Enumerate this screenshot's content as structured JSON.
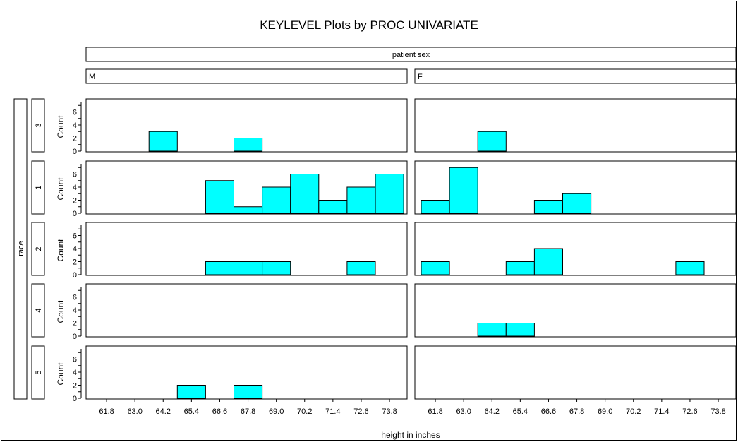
{
  "chart_data": {
    "type": "bar",
    "title": "KEYLEVEL Plots by PROC UNIVARIATE",
    "column_variable": "patient sex",
    "row_variable": "race",
    "columns": [
      "M",
      "F"
    ],
    "rows": [
      "3",
      "1",
      "2",
      "4",
      "5"
    ],
    "xlabel": "height in inches",
    "ylabel": "Count",
    "x_ticks": [
      "61.8",
      "63.0",
      "64.2",
      "65.4",
      "66.6",
      "67.8",
      "69.0",
      "70.2",
      "71.4",
      "72.6",
      "73.8"
    ],
    "y_ticks": [
      "0",
      "2",
      "4",
      "6"
    ],
    "ylim": [
      0,
      8
    ],
    "bin_width": 1.2,
    "bar_color": "#00ffff",
    "panels": [
      {
        "row": "3",
        "col": "M",
        "counts": [
          0,
          0,
          3,
          0,
          0,
          2,
          0,
          0,
          0,
          0,
          0
        ]
      },
      {
        "row": "3",
        "col": "F",
        "counts": [
          0,
          0,
          3,
          0,
          0,
          0,
          0,
          0,
          0,
          0,
          0
        ]
      },
      {
        "row": "1",
        "col": "M",
        "counts": [
          0,
          0,
          0,
          0,
          5,
          1,
          4,
          6,
          2,
          4,
          6
        ]
      },
      {
        "row": "1",
        "col": "F",
        "counts": [
          2,
          7,
          0,
          0,
          2,
          3,
          0,
          0,
          0,
          0,
          0
        ]
      },
      {
        "row": "2",
        "col": "M",
        "counts": [
          0,
          0,
          0,
          0,
          2,
          2,
          2,
          0,
          0,
          2,
          0
        ]
      },
      {
        "row": "2",
        "col": "F",
        "counts": [
          2,
          0,
          0,
          2,
          4,
          0,
          0,
          0,
          0,
          2,
          0
        ]
      },
      {
        "row": "4",
        "col": "M",
        "counts": [
          0,
          0,
          0,
          0,
          0,
          0,
          0,
          0,
          0,
          0,
          0
        ]
      },
      {
        "row": "4",
        "col": "F",
        "counts": [
          0,
          0,
          2,
          2,
          0,
          0,
          0,
          0,
          0,
          0,
          0
        ]
      },
      {
        "row": "5",
        "col": "M",
        "counts": [
          0,
          0,
          0,
          2,
          0,
          2,
          0,
          0,
          0,
          0,
          0
        ]
      },
      {
        "row": "5",
        "col": "F",
        "counts": [
          0,
          0,
          0,
          0,
          0,
          0,
          0,
          0,
          0,
          0,
          0
        ]
      }
    ]
  }
}
